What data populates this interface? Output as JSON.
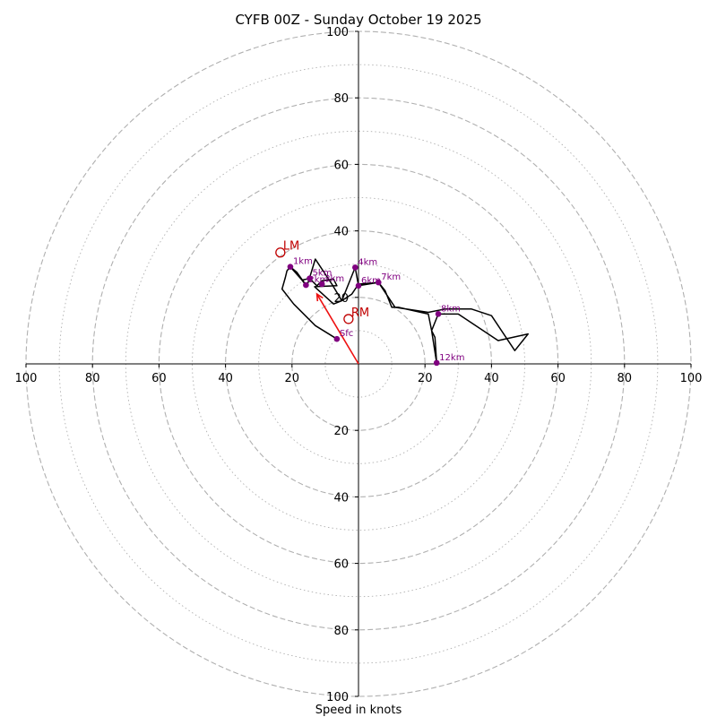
{
  "chart_data": {
    "type": "hodograph",
    "title": "CYFB 00Z - Sunday October 19 2025",
    "xlabel": "Speed in knots",
    "unit": "knots",
    "range": [
      -100,
      100
    ],
    "ring_major": [
      20,
      40,
      60,
      80,
      100
    ],
    "ring_minor": [
      10,
      30,
      50,
      70,
      90
    ],
    "tick_labels": {
      "x": [
        {
          "v": -100,
          "text": "100"
        },
        {
          "v": -80,
          "text": "80"
        },
        {
          "v": -60,
          "text": "60"
        },
        {
          "v": -40,
          "text": "40"
        },
        {
          "v": -20,
          "text": "20"
        },
        {
          "v": 20,
          "text": "20"
        },
        {
          "v": 40,
          "text": "40"
        },
        {
          "v": 60,
          "text": "60"
        },
        {
          "v": 80,
          "text": "80"
        },
        {
          "v": 100,
          "text": "100"
        }
      ],
      "y": [
        {
          "v": 100,
          "text": "100"
        },
        {
          "v": 80,
          "text": "80"
        },
        {
          "v": 60,
          "text": "60"
        },
        {
          "v": 40,
          "text": "40"
        },
        {
          "v": 20,
          "text": "20"
        },
        {
          "v": -20,
          "text": "20"
        },
        {
          "v": -40,
          "text": "40"
        },
        {
          "v": -60,
          "text": "60"
        },
        {
          "v": -80,
          "text": "80"
        },
        {
          "v": -100,
          "text": "100"
        }
      ]
    },
    "trace": [
      [
        -6.5,
        7.5
      ],
      [
        -13,
        11.5
      ],
      [
        -19.5,
        18
      ],
      [
        -23,
        22.5
      ],
      [
        -22,
        26
      ],
      [
        -21.5,
        28
      ],
      [
        -20.5,
        29.2
      ],
      [
        -18.5,
        27.5
      ],
      [
        -15.8,
        23.7
      ],
      [
        -17,
        25.2
      ],
      [
        -14.7,
        25.7
      ],
      [
        -12.5,
        23.5
      ],
      [
        -11,
        25
      ],
      [
        -7.5,
        25.5
      ],
      [
        -6.5,
        23.5
      ],
      [
        -13.2,
        23.2
      ],
      [
        -7.5,
        18
      ],
      [
        -5,
        19
      ],
      [
        -1,
        29
      ],
      [
        0,
        23.5
      ],
      [
        6,
        24.5
      ],
      [
        11,
        17
      ],
      [
        21,
        15.5
      ],
      [
        26,
        16.5
      ],
      [
        34,
        16.5
      ],
      [
        40,
        14.5
      ],
      [
        47,
        4
      ],
      [
        51,
        9
      ],
      [
        42,
        7
      ],
      [
        30,
        15
      ],
      [
        25,
        15
      ],
      [
        24,
        15
      ],
      [
        22,
        10
      ],
      [
        21,
        15
      ],
      [
        22,
        10
      ],
      [
        23,
        8
      ],
      [
        23.5,
        0.3
      ],
      [
        22,
        10
      ],
      [
        21,
        15
      ],
      [
        12,
        17
      ],
      [
        10,
        17
      ],
      [
        8,
        22
      ],
      [
        6,
        24.5
      ],
      [
        0,
        24
      ],
      [
        -2,
        21
      ],
      [
        -5,
        19
      ],
      [
        -8,
        24
      ],
      [
        -13,
        31.5
      ],
      [
        -15,
        25
      ],
      [
        -15.5,
        23.5
      ],
      [
        -20.5,
        29.2
      ]
    ],
    "height_points": [
      {
        "label": "Sfc",
        "u": -6.5,
        "v": 7.5
      },
      {
        "label": "1km",
        "u": -20.5,
        "v": 29.2
      },
      {
        "label": "2km",
        "u": -15.8,
        "v": 23.7
      },
      {
        "label": "3km",
        "u": -11,
        "v": 24
      },
      {
        "label": "4km",
        "u": -1,
        "v": 29
      },
      {
        "label": "5km",
        "u": -14.7,
        "v": 25.7
      },
      {
        "label": "6km",
        "u": 0,
        "v": 23.5
      },
      {
        "label": "7km",
        "u": 6,
        "v": 24.5
      },
      {
        "label": "8km",
        "u": 24,
        "v": 15
      },
      {
        "label": "12km",
        "u": 23.5,
        "v": 0.3
      }
    ],
    "storm_motion": [
      {
        "label": "LM",
        "u": -23.5,
        "v": 33.5
      },
      {
        "label": "RM",
        "u": -3,
        "v": 13.5
      }
    ],
    "mean_wind_arrow": {
      "from": [
        0,
        0
      ],
      "to": [
        -12.5,
        21
      ]
    },
    "colors": {
      "trace": "#000000",
      "points": "#800080",
      "storm_motion": "#c00000",
      "arrow": "#ee1111",
      "rings": "#b0b0b0"
    }
  }
}
